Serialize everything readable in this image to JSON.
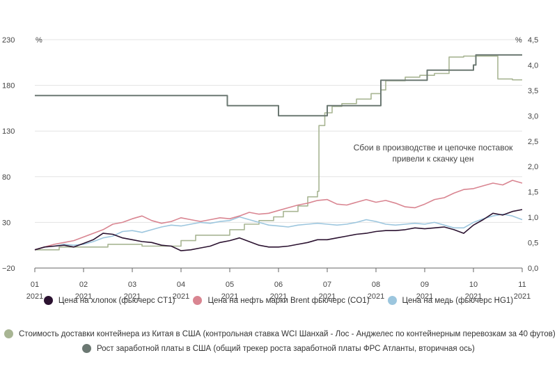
{
  "chart_data": {
    "type": "line",
    "title": "",
    "y_left": {
      "unit": "%",
      "ticks": [
        "230",
        "180",
        "130",
        "80",
        "30",
        "−20"
      ],
      "range": [
        -20,
        230
      ]
    },
    "y_right": {
      "unit": "%",
      "ticks": [
        "4,5",
        "4,0",
        "3,5",
        "3,0",
        "2,5",
        "2,0",
        "1,5",
        "1,0",
        "0,5",
        "0,0"
      ],
      "range": [
        0,
        4.5
      ]
    },
    "x_ticks": [
      {
        "m": "01",
        "y": "2021"
      },
      {
        "m": "02",
        "y": "2021"
      },
      {
        "m": "03",
        "y": "2021"
      },
      {
        "m": "04",
        "y": "2021"
      },
      {
        "m": "05",
        "y": "2021"
      },
      {
        "m": "06",
        "y": "2021"
      },
      {
        "m": "07",
        "y": "2021"
      },
      {
        "m": "08",
        "y": "2021"
      },
      {
        "m": "09",
        "y": "2021"
      },
      {
        "m": "10",
        "y": "2021"
      },
      {
        "m": "11",
        "y": "2021"
      }
    ],
    "annotation": [
      "Сбои в производстве и цепочке поставок",
      "привели к скачку цен"
    ],
    "series": [
      {
        "name": "Цена на хлопок (фьючерс CT1)",
        "color": "#2b1230",
        "axis": "left",
        "points": [
          [
            1.0,
            0
          ],
          [
            1.2,
            3
          ],
          [
            1.4,
            4
          ],
          [
            1.6,
            5
          ],
          [
            1.8,
            3
          ],
          [
            2.0,
            7
          ],
          [
            2.2,
            11
          ],
          [
            2.4,
            18
          ],
          [
            2.6,
            17
          ],
          [
            2.8,
            13
          ],
          [
            3.0,
            11
          ],
          [
            3.2,
            9
          ],
          [
            3.4,
            8
          ],
          [
            3.6,
            5
          ],
          [
            3.8,
            4
          ],
          [
            4.0,
            -1
          ],
          [
            4.2,
            0
          ],
          [
            4.4,
            2
          ],
          [
            4.6,
            4
          ],
          [
            4.8,
            8
          ],
          [
            5.0,
            10
          ],
          [
            5.2,
            13
          ],
          [
            5.4,
            9
          ],
          [
            5.6,
            5
          ],
          [
            5.8,
            3
          ],
          [
            6.0,
            3
          ],
          [
            6.2,
            4
          ],
          [
            6.4,
            6
          ],
          [
            6.6,
            8
          ],
          [
            6.8,
            11
          ],
          [
            7.0,
            11
          ],
          [
            7.2,
            13
          ],
          [
            7.4,
            15
          ],
          [
            7.6,
            17
          ],
          [
            7.8,
            18
          ],
          [
            8.0,
            20
          ],
          [
            8.2,
            21
          ],
          [
            8.4,
            21
          ],
          [
            8.6,
            22
          ],
          [
            8.8,
            24
          ],
          [
            9.0,
            23
          ],
          [
            9.2,
            24
          ],
          [
            9.4,
            25
          ],
          [
            9.6,
            22
          ],
          [
            9.8,
            18
          ],
          [
            10.0,
            27
          ],
          [
            10.2,
            33
          ],
          [
            10.4,
            40
          ],
          [
            10.6,
            38
          ],
          [
            10.8,
            42
          ],
          [
            11.0,
            44
          ]
        ]
      },
      {
        "name": "Цена на нефть марки Brent фьючерс (CO1)",
        "color": "#d98591",
        "axis": "left",
        "points": [
          [
            1.0,
            0
          ],
          [
            1.2,
            3
          ],
          [
            1.4,
            6
          ],
          [
            1.6,
            8
          ],
          [
            1.8,
            10
          ],
          [
            2.0,
            14
          ],
          [
            2.2,
            18
          ],
          [
            2.4,
            22
          ],
          [
            2.6,
            28
          ],
          [
            2.8,
            30
          ],
          [
            3.0,
            34
          ],
          [
            3.2,
            37
          ],
          [
            3.4,
            32
          ],
          [
            3.6,
            29
          ],
          [
            3.8,
            31
          ],
          [
            4.0,
            35
          ],
          [
            4.2,
            33
          ],
          [
            4.4,
            31
          ],
          [
            4.6,
            33
          ],
          [
            4.8,
            35
          ],
          [
            5.0,
            34
          ],
          [
            5.2,
            37
          ],
          [
            5.4,
            41
          ],
          [
            5.6,
            39
          ],
          [
            5.8,
            40
          ],
          [
            6.0,
            43
          ],
          [
            6.2,
            46
          ],
          [
            6.4,
            49
          ],
          [
            6.6,
            51
          ],
          [
            6.8,
            54
          ],
          [
            7.0,
            55
          ],
          [
            7.2,
            50
          ],
          [
            7.4,
            49
          ],
          [
            7.6,
            52
          ],
          [
            7.8,
            55
          ],
          [
            8.0,
            52
          ],
          [
            8.2,
            54
          ],
          [
            8.4,
            51
          ],
          [
            8.6,
            47
          ],
          [
            8.8,
            46
          ],
          [
            9.0,
            50
          ],
          [
            9.2,
            55
          ],
          [
            9.4,
            57
          ],
          [
            9.6,
            62
          ],
          [
            9.8,
            66
          ],
          [
            10.0,
            67
          ],
          [
            10.2,
            70
          ],
          [
            10.4,
            73
          ],
          [
            10.6,
            71
          ],
          [
            10.8,
            76
          ],
          [
            11.0,
            73
          ]
        ]
      },
      {
        "name": "Цена на медь (фьючерс HG1)",
        "color": "#9cc6de",
        "axis": "left",
        "points": [
          [
            1.0,
            0
          ],
          [
            1.2,
            3
          ],
          [
            1.4,
            4
          ],
          [
            1.6,
            6
          ],
          [
            1.8,
            5
          ],
          [
            2.0,
            6
          ],
          [
            2.2,
            9
          ],
          [
            2.4,
            13
          ],
          [
            2.6,
            15
          ],
          [
            2.8,
            20
          ],
          [
            3.0,
            21
          ],
          [
            3.2,
            19
          ],
          [
            3.4,
            22
          ],
          [
            3.6,
            25
          ],
          [
            3.8,
            27
          ],
          [
            4.0,
            26
          ],
          [
            4.2,
            28
          ],
          [
            4.4,
            30
          ],
          [
            4.6,
            29
          ],
          [
            4.8,
            31
          ],
          [
            5.0,
            32
          ],
          [
            5.2,
            36
          ],
          [
            5.4,
            33
          ],
          [
            5.6,
            30
          ],
          [
            5.8,
            27
          ],
          [
            6.0,
            26
          ],
          [
            6.2,
            25
          ],
          [
            6.4,
            27
          ],
          [
            6.6,
            28
          ],
          [
            6.8,
            29
          ],
          [
            7.0,
            28
          ],
          [
            7.2,
            27
          ],
          [
            7.4,
            28
          ],
          [
            7.6,
            30
          ],
          [
            7.8,
            33
          ],
          [
            8.0,
            31
          ],
          [
            8.2,
            28
          ],
          [
            8.4,
            27
          ],
          [
            8.6,
            28
          ],
          [
            8.8,
            29
          ],
          [
            9.0,
            28
          ],
          [
            9.2,
            30
          ],
          [
            9.4,
            27
          ],
          [
            9.6,
            24
          ],
          [
            9.8,
            24
          ],
          [
            10.0,
            30
          ],
          [
            10.2,
            34
          ],
          [
            10.4,
            37
          ],
          [
            10.6,
            39
          ],
          [
            10.8,
            37
          ],
          [
            11.0,
            33
          ]
        ]
      },
      {
        "name": "Стоимость доставки контейнера из Китая в США (контрольная ставка WCI Шанхай - Лос - Анджелес по контейнерным перевозкам за 40 футов)",
        "color": "#a8b593",
        "axis": "left",
        "points": [
          [
            1.0,
            0
          ],
          [
            1.5,
            0
          ],
          [
            1.5,
            3
          ],
          [
            2.5,
            3
          ],
          [
            2.5,
            6
          ],
          [
            3.2,
            6
          ],
          [
            3.2,
            4
          ],
          [
            4.0,
            4
          ],
          [
            4.0,
            10
          ],
          [
            4.3,
            10
          ],
          [
            4.3,
            16
          ],
          [
            5.0,
            16
          ],
          [
            5.0,
            22
          ],
          [
            5.3,
            22
          ],
          [
            5.3,
            28
          ],
          [
            5.6,
            28
          ],
          [
            5.6,
            32
          ],
          [
            5.9,
            32
          ],
          [
            5.9,
            36
          ],
          [
            6.1,
            36
          ],
          [
            6.1,
            42
          ],
          [
            6.4,
            42
          ],
          [
            6.4,
            48
          ],
          [
            6.6,
            48
          ],
          [
            6.6,
            58
          ],
          [
            6.8,
            58
          ],
          [
            6.8,
            64
          ],
          [
            6.83,
            64
          ],
          [
            6.83,
            136
          ],
          [
            6.95,
            136
          ],
          [
            6.95,
            150
          ],
          [
            7.1,
            150
          ],
          [
            7.1,
            157
          ],
          [
            7.3,
            157
          ],
          [
            7.3,
            160
          ],
          [
            7.6,
            160
          ],
          [
            7.6,
            165
          ],
          [
            7.9,
            165
          ],
          [
            7.9,
            171
          ],
          [
            8.1,
            171
          ],
          [
            8.1,
            175
          ],
          [
            8.2,
            175
          ],
          [
            8.2,
            185
          ],
          [
            8.6,
            185
          ],
          [
            8.6,
            189
          ],
          [
            8.9,
            189
          ],
          [
            8.9,
            191
          ],
          [
            9.2,
            191
          ],
          [
            9.2,
            193
          ],
          [
            9.5,
            193
          ],
          [
            9.5,
            211
          ],
          [
            9.8,
            211
          ],
          [
            9.8,
            212
          ],
          [
            10.5,
            212
          ],
          [
            10.5,
            187
          ],
          [
            10.8,
            187
          ],
          [
            10.8,
            186
          ],
          [
            11.0,
            186
          ]
        ]
      },
      {
        "name": "Рост заработной платы в США (общий трекер роста заработной платы ФРС Атланты, вторичная ось)",
        "color": "#6b7872",
        "axis": "right",
        "points": [
          [
            1.0,
            3.4
          ],
          [
            4.95,
            3.4
          ],
          [
            4.95,
            3.2
          ],
          [
            6.0,
            3.2
          ],
          [
            6.0,
            3.0
          ],
          [
            7.0,
            3.0
          ],
          [
            7.0,
            3.2
          ],
          [
            8.1,
            3.2
          ],
          [
            8.1,
            3.7
          ],
          [
            9.05,
            3.7
          ],
          [
            9.05,
            3.9
          ],
          [
            10.0,
            3.9
          ],
          [
            10.0,
            4.0
          ],
          [
            10.05,
            4.0
          ],
          [
            10.05,
            4.2
          ],
          [
            11.0,
            4.2
          ]
        ]
      }
    ]
  }
}
